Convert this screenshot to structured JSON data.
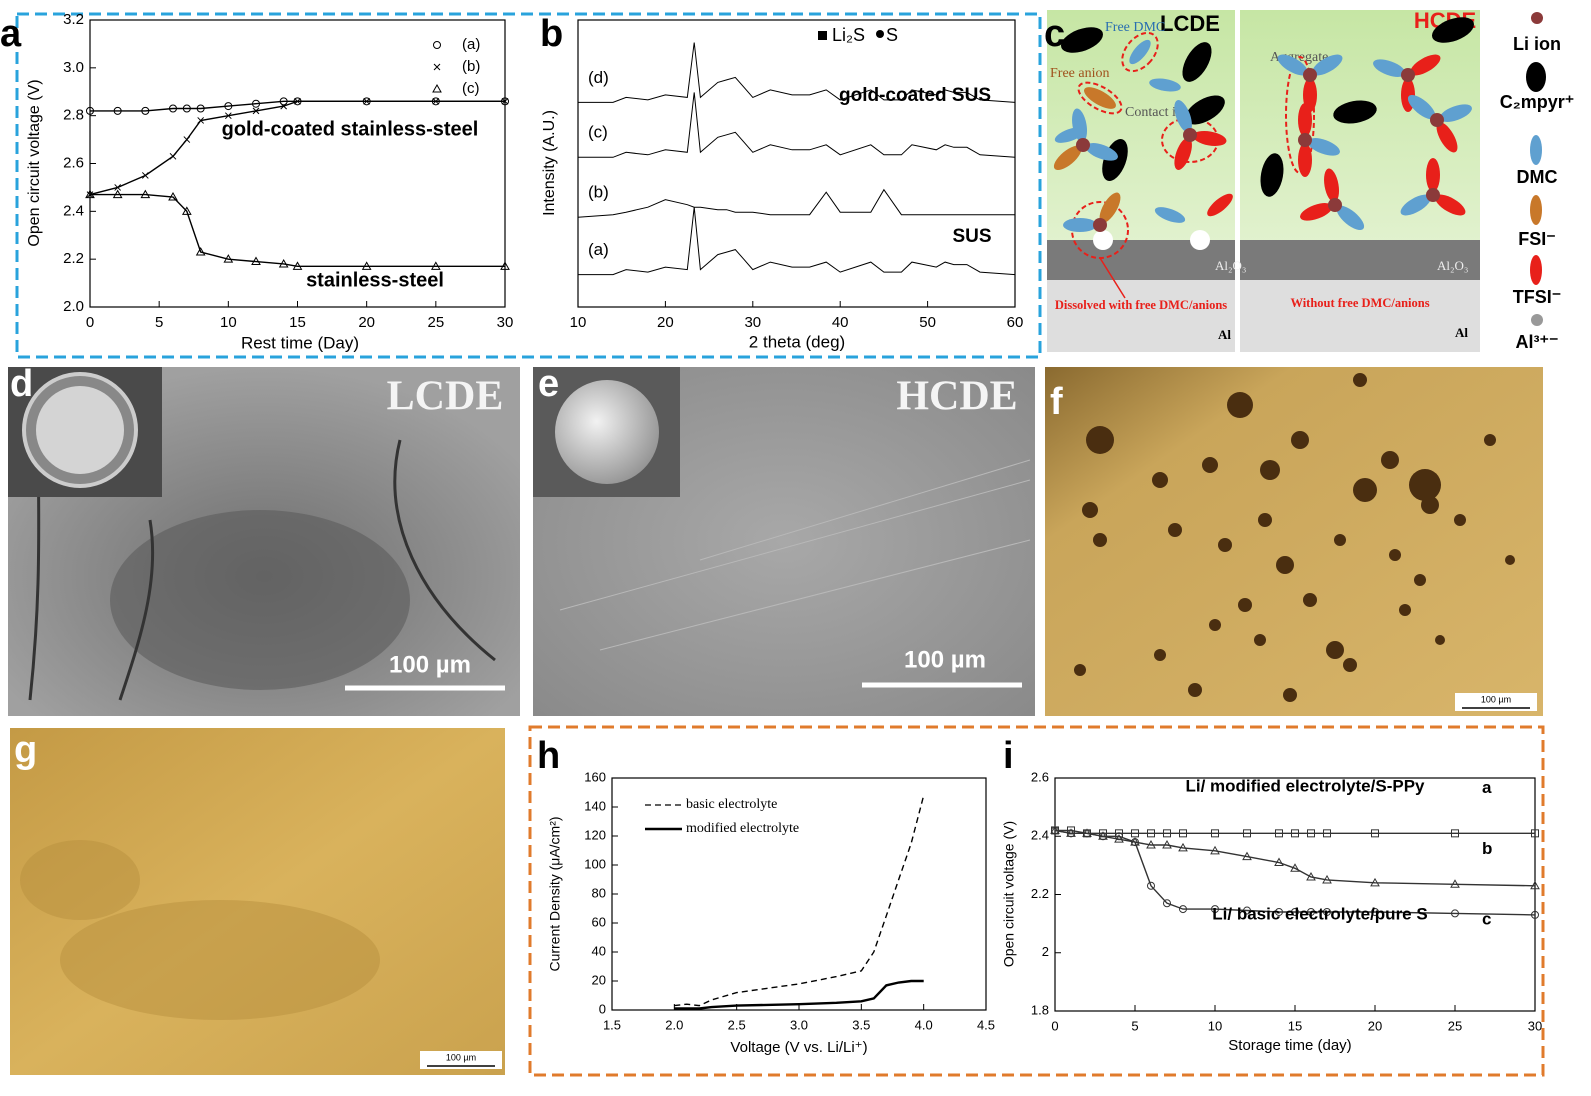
{
  "chart_data": [
    {
      "type": "line",
      "label": "a",
      "xlabel": "Rest time (Day)",
      "ylabel": "Open circuit voltage (V)",
      "xlim": [
        0,
        30
      ],
      "xticks": [
        0,
        5,
        10,
        15,
        20,
        25,
        30
      ],
      "ylim": [
        2.0,
        3.2
      ],
      "yticks": [
        {
          "value": 2.0,
          "label": "2.0"
        },
        2.2,
        2.4,
        2.6,
        2.8,
        {
          "value": 3.0,
          "label": "3.0"
        },
        3.2
      ],
      "x": [
        0,
        2,
        4,
        6,
        7,
        8,
        10,
        12,
        14,
        15,
        20,
        25,
        30
      ],
      "series": [
        {
          "name": "(a)",
          "color": "#000000",
          "marker": "circle",
          "values": [
            2.82,
            2.82,
            2.82,
            2.83,
            2.83,
            2.83,
            2.84,
            2.85,
            2.86,
            2.86,
            2.86,
            2.86,
            2.86
          ]
        },
        {
          "name": "(b)",
          "color": "#000000",
          "marker": "x",
          "values": [
            2.47,
            2.5,
            2.55,
            2.63,
            2.7,
            2.78,
            2.8,
            2.82,
            2.84,
            2.86,
            2.86,
            2.86,
            2.86
          ]
        },
        {
          "name": "(c)",
          "color": "#000000",
          "marker": "triangle",
          "values": [
            2.47,
            2.47,
            2.47,
            2.46,
            2.4,
            2.23,
            2.2,
            2.19,
            2.18,
            2.17,
            2.17,
            2.17,
            2.17
          ]
        }
      ],
      "annotations": [
        "gold-coated stainless-steel",
        "stainless-steel"
      ]
    },
    {
      "type": "line",
      "label": "b",
      "xlabel": "2 theta (deg)",
      "ylabel": "Intensity (A.U.)",
      "xlim": [
        10,
        60
      ],
      "xticks": [
        10,
        20,
        30,
        40,
        50,
        60
      ],
      "ylim": [
        0,
        115
      ],
      "x": [
        10,
        14,
        15.5,
        18,
        20,
        22.5,
        23.3,
        24,
        26,
        27,
        28,
        29,
        30,
        32,
        34.5,
        36.5,
        38.4,
        40,
        43.5,
        45,
        47,
        48.2,
        51,
        52,
        53,
        54.5,
        56,
        60
      ],
      "series": [
        {
          "name": "(a)",
          "color": "#000000",
          "values": [
            13,
            13,
            15,
            14,
            16,
            15,
            40,
            15,
            21,
            22,
            23,
            19,
            15,
            18,
            16,
            16,
            18,
            14,
            18,
            14,
            14,
            18,
            16,
            18,
            17,
            17,
            14,
            13
          ]
        },
        {
          "name": "(b)",
          "color": "#000000",
          "values": [
            36,
            37,
            38,
            40,
            43,
            41,
            40,
            40,
            39,
            39,
            38,
            38,
            38,
            37,
            37,
            37,
            46,
            38,
            38,
            47,
            37,
            37,
            37,
            37,
            37,
            37,
            37,
            37
          ]
        },
        {
          "name": "(c)",
          "color": "#000000",
          "values": [
            60,
            60,
            62,
            61,
            63,
            62,
            86,
            62,
            68,
            69,
            70,
            66,
            62,
            65,
            63,
            63,
            65,
            61,
            65,
            61,
            61,
            65,
            63,
            65,
            64,
            64,
            61,
            60
          ]
        },
        {
          "name": "(d)",
          "color": "#000000",
          "values": [
            82,
            82,
            84,
            83,
            85,
            84,
            106,
            84,
            90,
            91,
            92,
            88,
            84,
            87,
            85,
            85,
            87,
            83,
            87,
            83,
            83,
            87,
            85,
            87,
            86,
            86,
            83,
            82
          ]
        }
      ],
      "phases": [
        "Li₂S",
        "S"
      ],
      "annotations": [
        "gold-coated SUS",
        "SUS"
      ]
    },
    {
      "type": "line",
      "label": "h",
      "xlabel": "Voltage (V vs. Li/Li⁺)",
      "ylabel": "Current Density (μA/cm²)",
      "xlim": [
        1.5,
        4.5
      ],
      "xticks": [
        1.5,
        {
          "value": 2.0,
          "label": "2.0"
        },
        2.5,
        {
          "value": 3.0,
          "label": "3.0"
        },
        3.5,
        {
          "value": 4.0,
          "label": "4.0"
        },
        4.5
      ],
      "ylim": [
        0,
        160
      ],
      "yticks": [
        0,
        20,
        40,
        60,
        80,
        100,
        120,
        140,
        160
      ],
      "x": [
        2.0,
        2.1,
        2.2,
        2.3,
        2.5,
        3.0,
        3.3,
        3.5,
        3.6,
        3.7,
        3.8,
        3.9,
        4.0
      ],
      "series": [
        {
          "name": "basic electrolyte",
          "color": "#000000",
          "dash": true,
          "values": [
            3,
            4,
            3,
            7,
            12,
            18,
            23,
            27,
            40,
            65,
            90,
            115,
            148
          ]
        },
        {
          "name": "modified electrolyte",
          "color": "#000000",
          "dash": false,
          "values": [
            1,
            1,
            1,
            2,
            3,
            4,
            5,
            6,
            8,
            17,
            19,
            20,
            20
          ]
        }
      ]
    },
    {
      "type": "line",
      "label": "i",
      "xlabel": "Storage time (day)",
      "ylabel": "Open circuit voltage (V)",
      "xlim": [
        0,
        30
      ],
      "xticks": [
        0,
        5,
        10,
        15,
        20,
        25,
        30
      ],
      "ylim": [
        1.8,
        2.6
      ],
      "yticks": [
        1.8,
        2,
        2.2,
        2.4,
        2.6
      ],
      "x": [
        0,
        1,
        2,
        3,
        4,
        5,
        6,
        7,
        8,
        10,
        12,
        14,
        15,
        16,
        17,
        20,
        25,
        30
      ],
      "series": [
        {
          "name": "a",
          "color": "#333333",
          "marker": "square",
          "values": [
            2.42,
            2.42,
            2.41,
            2.41,
            2.41,
            2.41,
            2.41,
            2.41,
            2.41,
            2.41,
            2.41,
            2.41,
            2.41,
            2.41,
            2.41,
            2.41,
            2.41,
            2.41
          ]
        },
        {
          "name": "b",
          "color": "#333333",
          "marker": "triangle",
          "values": [
            2.42,
            2.41,
            2.41,
            2.4,
            2.39,
            2.38,
            2.37,
            2.37,
            2.36,
            2.35,
            2.33,
            2.31,
            2.29,
            2.26,
            2.25,
            2.24,
            2.235,
            2.23
          ]
        },
        {
          "name": "c",
          "color": "#333333",
          "marker": "circle",
          "values": [
            2.42,
            2.41,
            2.41,
            2.4,
            2.4,
            2.38,
            2.23,
            2.17,
            2.15,
            2.15,
            2.145,
            2.14,
            2.14,
            2.14,
            2.14,
            2.14,
            2.135,
            2.13
          ]
        }
      ],
      "annotations": [
        "Li/ modified electrolyte/S-PPy",
        "Li/ basic electrolyte/pure S"
      ]
    }
  ],
  "panels": {
    "c": {
      "label": "c",
      "lcde": "LCDE",
      "hcde": "HCDE",
      "free_dmc": "Free DMC",
      "free_anion": "Free anion",
      "contact": "Contact ion pair",
      "aggregate": "Aggregate",
      "al2o3": [
        "Al₂O₃",
        "Al₂O₃"
      ],
      "note_left": "Dissolved with free DMC/anions",
      "note_right": "Without free DMC/anions",
      "al": [
        "Al",
        "Al"
      ],
      "legend": [
        "Li ion",
        "C₂mpyr⁺",
        "DMC",
        "FSI⁻",
        "TFSI⁻",
        "Al³⁺⁻"
      ]
    },
    "d": {
      "label": "d",
      "title": "LCDE",
      "scale": "100 µm"
    },
    "e": {
      "label": "e",
      "title": "HCDE",
      "scale": "100 µm"
    },
    "f": {
      "label": "f",
      "scale": "100 µm"
    },
    "g": {
      "label": "g",
      "scale": "100 µm"
    }
  }
}
